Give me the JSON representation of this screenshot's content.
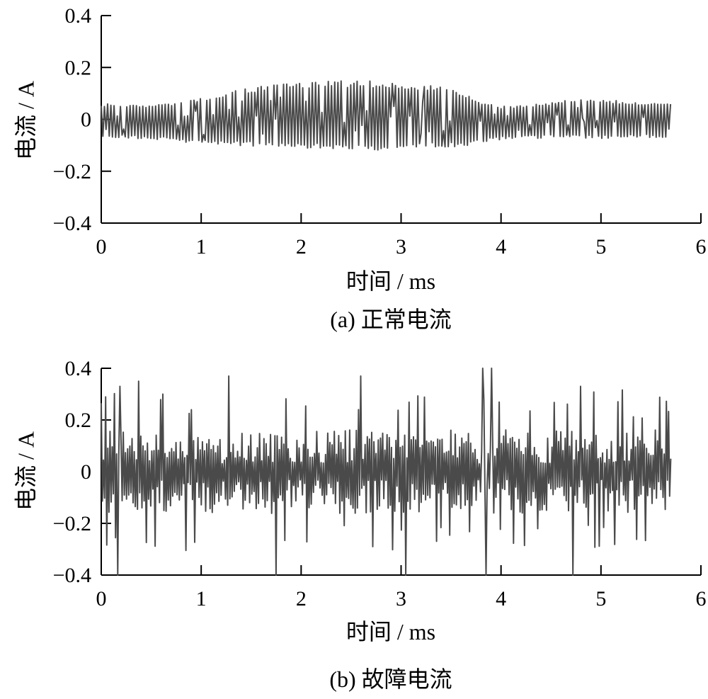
{
  "chart_data": [
    {
      "type": "line",
      "caption": "(a)  正常电流",
      "xlabel": "时间 / ms",
      "ylabel": "电流 / A",
      "xlim": [
        0,
        6
      ],
      "ylim": [
        -0.4,
        0.4
      ],
      "xticks": [
        "0",
        "1",
        "2",
        "3",
        "4",
        "5",
        "6"
      ],
      "yticks": [
        "0.4",
        "0.2",
        "0",
        "−0.2",
        "−0.4"
      ],
      "line_color": "#4a4a4a",
      "signal": {
        "x_start": 0,
        "x_end": 5.7,
        "oscillation_period_ms": 0.032,
        "envelope": {
          "x": [
            0,
            0.5,
            0.8,
            1.2,
            1.6,
            2.0,
            2.3,
            2.7,
            3.0,
            3.3,
            3.6,
            3.8,
            4.0,
            4.3,
            4.6,
            4.9,
            5.2,
            5.5,
            5.7
          ],
          "upper": [
            0.06,
            0.055,
            0.065,
            0.1,
            0.13,
            0.145,
            0.15,
            0.148,
            0.14,
            0.13,
            0.11,
            0.07,
            0.05,
            0.055,
            0.07,
            0.085,
            0.07,
            0.065,
            0.065
          ],
          "lower": [
            -0.07,
            -0.075,
            -0.09,
            -0.1,
            -0.105,
            -0.11,
            -0.115,
            -0.12,
            -0.115,
            -0.11,
            -0.105,
            -0.09,
            -0.08,
            -0.075,
            -0.07,
            -0.075,
            -0.07,
            -0.07,
            -0.07
          ]
        }
      }
    },
    {
      "type": "line",
      "caption": "(b)  故障电流",
      "xlabel": "时间 / ms",
      "ylabel": "电流 / A",
      "xlim": [
        0,
        6
      ],
      "ylim": [
        -0.4,
        0.4
      ],
      "xticks": [
        "0",
        "1",
        "2",
        "3",
        "4",
        "5",
        "6"
      ],
      "yticks": [
        "0.4",
        "0.2",
        "0",
        "−0.2",
        "−0.4"
      ],
      "line_color": "#4a4a4a",
      "signal": {
        "x_start": 0,
        "x_end": 5.7,
        "sample_interval_ms": 0.011,
        "typical_amplitude": 0.12,
        "peak_amplitude": 0.4,
        "peaks": [
          {
            "x": 0.16,
            "y": -0.4
          },
          {
            "x": 0.19,
            "y": 0.33
          },
          {
            "x": 0.37,
            "y": 0.35
          },
          {
            "x": 0.62,
            "y": 0.3
          },
          {
            "x": 1.28,
            "y": 0.37
          },
          {
            "x": 1.75,
            "y": -0.4
          },
          {
            "x": 2.6,
            "y": 0.37
          },
          {
            "x": 3.05,
            "y": -0.4
          },
          {
            "x": 3.82,
            "y": 0.4
          },
          {
            "x": 3.85,
            "y": -0.4
          },
          {
            "x": 3.9,
            "y": 0.4
          },
          {
            "x": 4.72,
            "y": -0.4
          },
          {
            "x": 4.8,
            "y": 0.33
          }
        ]
      }
    }
  ]
}
